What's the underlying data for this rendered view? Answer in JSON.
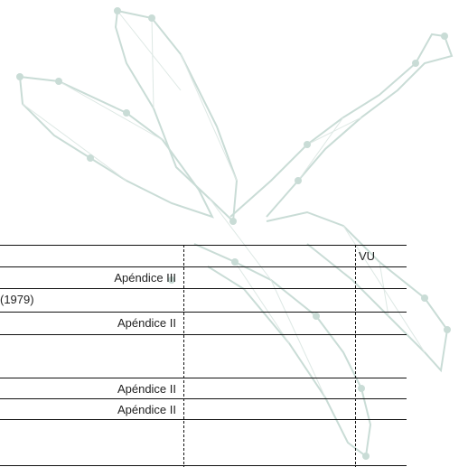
{
  "table": {
    "rows": [
      [
        null,
        null,
        "VU"
      ],
      [
        "Apéndice III",
        null,
        null
      ],
      [
        "(1979)",
        null,
        null
      ],
      [
        "Apéndice II",
        null,
        null
      ],
      [
        null,
        null,
        null
      ],
      [
        "Apéndice II",
        null,
        null
      ],
      [
        "Apéndice II",
        null,
        null
      ],
      [
        null,
        null,
        null
      ]
    ]
  }
}
